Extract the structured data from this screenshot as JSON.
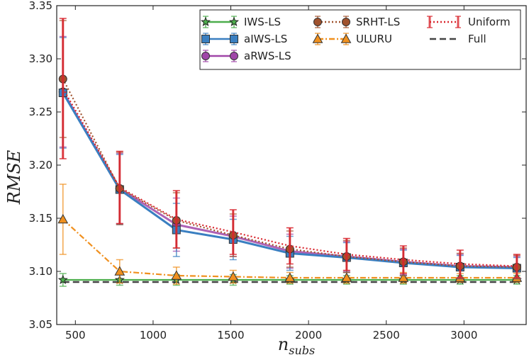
{
  "chart_data": {
    "type": "line",
    "title": "",
    "xlabel": "n",
    "xlabel_sub": "subs",
    "ylabel": "RMSE",
    "xlim": [
      380,
      3400
    ],
    "ylim": [
      3.05,
      3.35
    ],
    "xticks": [
      500,
      1000,
      1500,
      2000,
      2500,
      3000
    ],
    "xtick_labels": [
      "500",
      "1000",
      "1500",
      "2000",
      "2500",
      "3000"
    ],
    "yticks": [
      3.05,
      3.1,
      3.15,
      3.2,
      3.25,
      3.3,
      3.35
    ],
    "ytick_labels": [
      "3.05",
      "3.10",
      "3.15",
      "3.20",
      "3.25",
      "3.30",
      "3.35"
    ],
    "grid": false,
    "legend_position": "top-right",
    "x": [
      420,
      785,
      1150,
      1515,
      1880,
      2245,
      2610,
      2975,
      3340
    ],
    "series": [
      {
        "name": "IWS-LS",
        "color": "#4cae4c",
        "marker": "star",
        "dash": "solid",
        "values": [
          3.092,
          3.092,
          3.092,
          3.092,
          3.092,
          3.092,
          3.092,
          3.092,
          3.092
        ],
        "err": [
          0.006,
          0.005,
          0.005,
          0.005,
          0.004,
          0.004,
          0.004,
          0.004,
          0.004
        ]
      },
      {
        "name": "aIWS-LS",
        "color": "#3a7fc1",
        "marker": "square",
        "dash": "solid",
        "values": [
          3.268,
          3.177,
          3.139,
          3.13,
          3.117,
          3.113,
          3.108,
          3.104,
          3.103
        ],
        "err": [
          0.052,
          0.033,
          0.025,
          0.019,
          0.016,
          0.014,
          0.012,
          0.011,
          0.01
        ]
      },
      {
        "name": "aRWS-LS",
        "color": "#a046a8",
        "marker": "circle",
        "dash": "solid",
        "values": [
          3.269,
          3.178,
          3.144,
          3.133,
          3.119,
          3.114,
          3.109,
          3.105,
          3.104
        ],
        "err": [
          0.052,
          0.033,
          0.025,
          0.019,
          0.016,
          0.014,
          0.012,
          0.011,
          0.01
        ]
      },
      {
        "name": "SRHT-LS",
        "color": "#a0522d",
        "marker": "circle",
        "dash": "dotted",
        "values": [
          3.281,
          3.178,
          3.148,
          3.134,
          3.121,
          3.114,
          3.109,
          3.105,
          3.104
        ],
        "err": [
          0.055,
          0.034,
          0.026,
          0.02,
          0.017,
          0.015,
          0.013,
          0.012,
          0.011
        ]
      },
      {
        "name": "ULURU",
        "color": "#f0901e",
        "marker": "triangle",
        "dash": "dashdot",
        "values": [
          3.149,
          3.1,
          3.096,
          3.095,
          3.094,
          3.094,
          3.094,
          3.094,
          3.094
        ],
        "err": [
          0.033,
          0.011,
          0.008,
          0.006,
          0.005,
          0.005,
          0.005,
          0.004,
          0.004
        ]
      },
      {
        "name": "Uniform",
        "color": "#d9262e",
        "marker": "none",
        "dash": "dotted",
        "values": [
          3.272,
          3.179,
          3.149,
          3.137,
          3.124,
          3.116,
          3.111,
          3.107,
          3.105
        ],
        "err": [
          0.066,
          0.034,
          0.027,
          0.021,
          0.017,
          0.015,
          0.013,
          0.013,
          0.011
        ]
      },
      {
        "name": "Full",
        "color": "#444444",
        "marker": "none",
        "dash": "dashed",
        "values": [
          3.09,
          3.09,
          3.09,
          3.09,
          3.09,
          3.09,
          3.09,
          3.09,
          3.09
        ],
        "err": null
      }
    ],
    "legend_order": [
      "IWS-LS",
      "aIWS-LS",
      "aRWS-LS",
      "SRHT-LS",
      "ULURU",
      "Uniform",
      "Full"
    ]
  }
}
